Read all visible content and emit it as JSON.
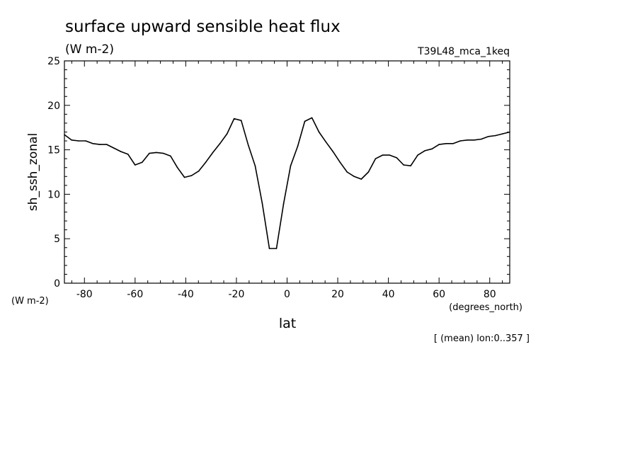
{
  "chart_data": {
    "type": "line",
    "title": "surface upward sensible heat flux",
    "units_label": "(W m-2)",
    "run_label": "T39L48_mca_1keq",
    "ylabel": "sh_ssh_zonal",
    "y_units": "(W m-2)",
    "xlabel": "lat",
    "x_units": "(degrees_north)",
    "footnote": "[ (mean) lon:0..357 ]",
    "xlim": [
      -87.9,
      87.9
    ],
    "ylim": [
      0,
      25
    ],
    "x_ticks": [
      {
        "value": -80,
        "label": "-80"
      },
      {
        "value": -60,
        "label": "-60"
      },
      {
        "value": -40,
        "label": "-40"
      },
      {
        "value": -20,
        "label": "-20"
      },
      {
        "value": 0,
        "label": "0"
      },
      {
        "value": 20,
        "label": "20"
      },
      {
        "value": 40,
        "label": "40"
      },
      {
        "value": 60,
        "label": "60"
      },
      {
        "value": 80,
        "label": "80"
      }
    ],
    "y_ticks": [
      {
        "value": 0,
        "label": "0"
      },
      {
        "value": 5,
        "label": "5"
      },
      {
        "value": 10,
        "label": "10"
      },
      {
        "value": 15,
        "label": "15"
      },
      {
        "value": 20,
        "label": "20"
      },
      {
        "value": 25,
        "label": "25"
      }
    ],
    "grid": false,
    "series": [
      {
        "color": "#000000",
        "x": [
          -87.9,
          -85.1,
          -82.3,
          -79.5,
          -76.7,
          -73.9,
          -71.2,
          -68.4,
          -65.6,
          -62.8,
          -60.0,
          -57.2,
          -54.4,
          -51.6,
          -48.8,
          -46.0,
          -43.3,
          -40.5,
          -37.7,
          -34.9,
          -32.1,
          -29.3,
          -26.5,
          -23.7,
          -20.9,
          -18.1,
          -15.3,
          -12.6,
          -9.8,
          -7.0,
          -4.2,
          -1.4,
          1.4,
          4.2,
          7.0,
          9.8,
          12.6,
          15.3,
          18.1,
          20.9,
          23.7,
          26.5,
          29.3,
          32.1,
          34.9,
          37.7,
          40.5,
          43.3,
          46.0,
          48.8,
          51.6,
          54.4,
          57.2,
          60.0,
          62.8,
          65.6,
          68.4,
          71.2,
          73.9,
          76.7,
          79.5,
          82.3,
          85.1,
          87.9
        ],
        "values": [
          16.7,
          16.1,
          16.0,
          16.0,
          15.7,
          15.6,
          15.6,
          15.2,
          14.8,
          14.5,
          13.3,
          13.6,
          14.6,
          14.7,
          14.6,
          14.3,
          13.0,
          11.9,
          12.1,
          12.6,
          13.6,
          14.7,
          15.7,
          16.8,
          18.5,
          18.3,
          15.5,
          13.2,
          9.0,
          3.9,
          3.9,
          8.9,
          13.2,
          15.4,
          18.2,
          18.6,
          17.0,
          15.9,
          14.8,
          13.6,
          12.5,
          12.0,
          11.7,
          12.5,
          14.0,
          14.4,
          14.4,
          14.1,
          13.3,
          13.2,
          14.4,
          14.9,
          15.1,
          15.6,
          15.7,
          15.7,
          16.0,
          16.1,
          16.1,
          16.2,
          16.5,
          16.6,
          16.8,
          17.0
        ]
      }
    ]
  }
}
